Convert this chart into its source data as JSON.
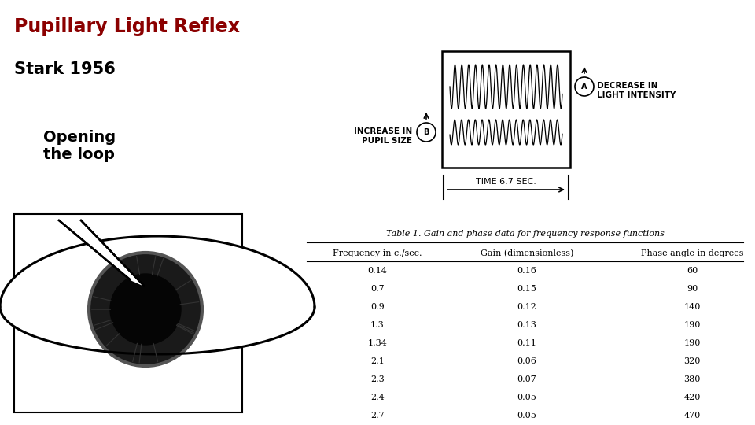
{
  "title": "Pupillary Light Reflex",
  "title_color": "#8B0000",
  "subtitle": "Stark 1956",
  "label_opening": "Opening\nthe loop",
  "bg_color": "#ffffff",
  "table_title": "Table 1. Gain and phase data for frequency response functions",
  "col_headers": [
    "Frequency in c./sec.",
    "Gain (dimensionless)",
    "Phase angle in degrees"
  ],
  "table_data": [
    [
      "0.14",
      "0.16",
      "60"
    ],
    [
      "0.7",
      "0.15",
      "90"
    ],
    [
      "0.9",
      "0.12",
      "140"
    ],
    [
      "1.3",
      "0.13",
      "190"
    ],
    [
      "1.34",
      "0.11",
      "190"
    ],
    [
      "2.1",
      "0.06",
      "320"
    ],
    [
      "2.3",
      "0.07",
      "380"
    ],
    [
      "2.4",
      "0.05",
      "420"
    ],
    [
      "2.7",
      "0.05",
      "470"
    ]
  ],
  "increase_label": "INCREASE IN\nPUPIL SIZE",
  "decrease_label": "DECREASE IN\nLIGHT INTENSITY",
  "time_label": "TIME 6.7 SEC."
}
